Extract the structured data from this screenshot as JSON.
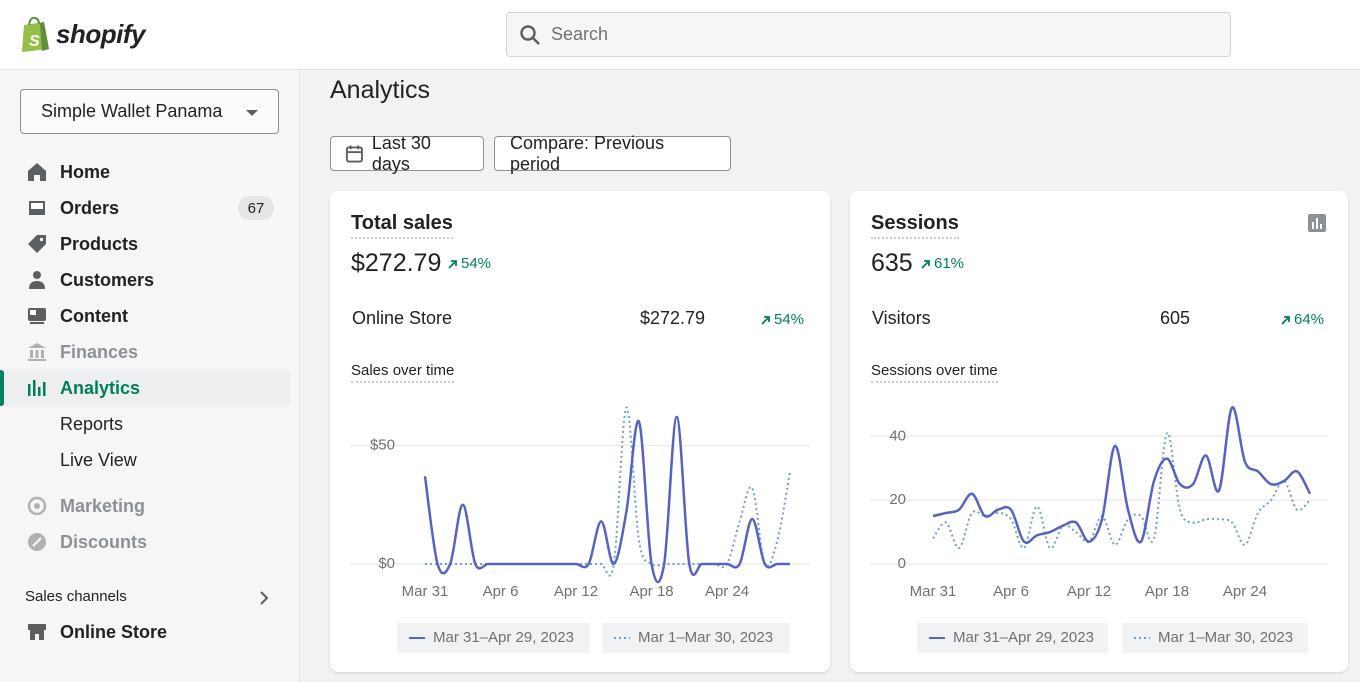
{
  "header": {
    "logo": "shopify",
    "search_placeholder": "Search"
  },
  "sidebar": {
    "store": "Simple Wallet Panama",
    "items": [
      {
        "label": "Home",
        "icon": "home"
      },
      {
        "label": "Orders",
        "icon": "orders",
        "badge": "67"
      },
      {
        "label": "Products",
        "icon": "tag"
      },
      {
        "label": "Customers",
        "icon": "person"
      },
      {
        "label": "Content",
        "icon": "content"
      },
      {
        "label": "Finances",
        "icon": "bank",
        "state": "dimmed"
      },
      {
        "label": "Analytics",
        "icon": "bars",
        "state": "active"
      },
      {
        "label": "Reports",
        "sub": true
      },
      {
        "label": "Live View",
        "sub": true
      },
      {
        "label": "Marketing",
        "icon": "target",
        "state": "dimmed",
        "gap": true
      },
      {
        "label": "Discounts",
        "icon": "discount",
        "state": "dimmed"
      }
    ],
    "section": "Sales channels",
    "channel": "Online Store"
  },
  "main": {
    "title": "Analytics",
    "date_button": "Last 30 days",
    "compare_button": "Compare: Previous period"
  },
  "chart_data": [
    {
      "type": "line",
      "title": "Total sales",
      "total": "$272.79",
      "change": "54%",
      "breakdown": {
        "label": "Online Store",
        "value": "$272.79",
        "change": "54%"
      },
      "subtitle": "Sales over time",
      "categories": [
        "Mar 31",
        null,
        null,
        null,
        null,
        null,
        "Apr 6",
        null,
        null,
        null,
        null,
        null,
        "Apr 12",
        null,
        null,
        null,
        null,
        null,
        "Apr 18",
        null,
        null,
        null,
        null,
        null,
        "Apr 24",
        null,
        null,
        null,
        null,
        null
      ],
      "series": [
        {
          "name": "Mar 31–Apr 29, 2023",
          "color": "#5563c1",
          "dash": false,
          "values": [
            37,
            0,
            0,
            25,
            0,
            0,
            0,
            0,
            0,
            0,
            0,
            0,
            0,
            0,
            18,
            0,
            22,
            60,
            0,
            0,
            62,
            0,
            0,
            0,
            0,
            0,
            19,
            0,
            0,
            0
          ]
        },
        {
          "name": "Mar 1–Mar 30, 2023",
          "color": "#6b9fd4",
          "dash": true,
          "values": [
            0,
            0,
            0,
            0,
            0,
            0,
            0,
            0,
            0,
            0,
            0,
            0,
            0,
            0,
            0,
            0,
            66,
            10,
            0,
            0,
            0,
            0,
            0,
            0,
            0,
            18,
            32,
            0,
            10,
            39
          ]
        }
      ],
      "ylim": [
        0,
        70
      ],
      "yticks": [
        {
          "value": 0,
          "label": "$0"
        },
        {
          "value": 50,
          "label": "$50"
        }
      ],
      "grid": true
    },
    {
      "type": "line",
      "title": "Sessions",
      "total": "635",
      "change": "61%",
      "breakdown": {
        "label": "Visitors",
        "value": "605",
        "change": "64%"
      },
      "subtitle": "Sessions over time",
      "categories": [
        "Mar 31",
        null,
        null,
        null,
        null,
        null,
        "Apr 6",
        null,
        null,
        null,
        null,
        null,
        "Apr 12",
        null,
        null,
        null,
        null,
        null,
        "Apr 18",
        null,
        null,
        null,
        null,
        null,
        "Apr 24",
        null,
        null,
        null,
        null,
        null
      ],
      "series": [
        {
          "name": "Mar 31–Apr 29, 2023",
          "color": "#5563c1",
          "dash": false,
          "values": [
            15,
            16,
            17,
            22,
            15,
            17,
            17,
            7,
            9,
            10,
            12,
            13,
            7,
            14,
            37,
            17,
            7,
            26,
            33,
            25,
            25,
            34,
            23,
            49,
            32,
            29,
            25,
            26,
            29,
            22
          ]
        },
        {
          "name": "Mar 1–Mar 30, 2023",
          "color": "#6b9fd4",
          "dash": true,
          "values": [
            8,
            13,
            5,
            16,
            15,
            16,
            14,
            5,
            18,
            5,
            12,
            10,
            7,
            15,
            6,
            14,
            15,
            8,
            41,
            17,
            13,
            14,
            14,
            13,
            6,
            16,
            20,
            26,
            17,
            20
          ]
        }
      ],
      "ylim": [
        0,
        52
      ],
      "yticks": [
        0,
        20,
        40
      ],
      "grid": true
    }
  ]
}
